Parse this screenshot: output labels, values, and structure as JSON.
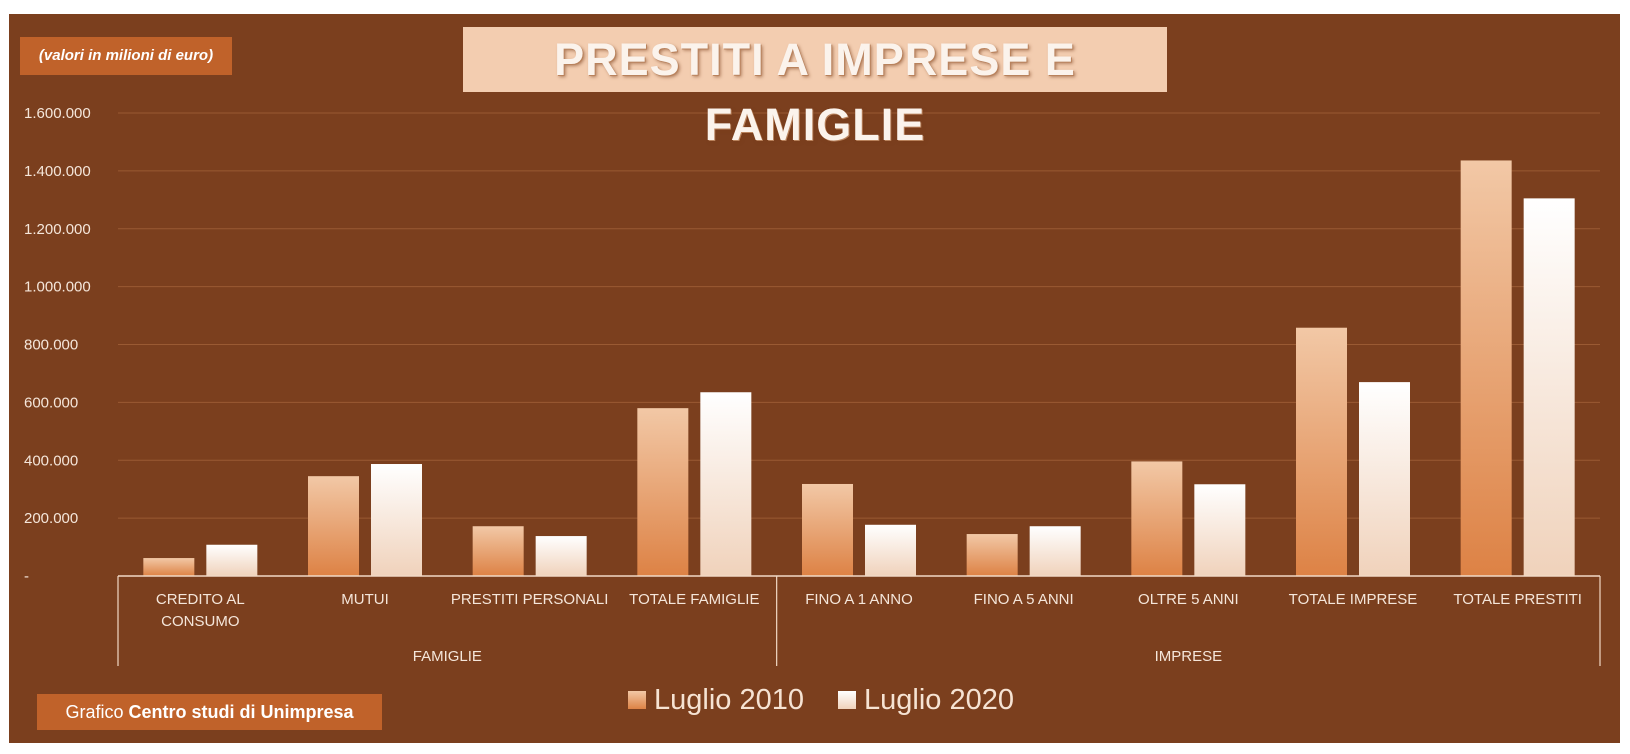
{
  "header": {
    "unit_note": "(valori in milioni di euro)",
    "title": "PRESTITI A IMPRESE E FAMIGLIE"
  },
  "footer": {
    "credit_prefix": "Grafico",
    "credit_bold": "Centro studi di Unimpresa"
  },
  "colors": {
    "background": "#7b3f1e",
    "series_2010_top": "#f2c8a6",
    "series_2010_bottom": "#dd8245",
    "series_2020_top": "#ffffff",
    "series_2020_bottom": "#f0d2bb",
    "label_box": "#c0622a"
  },
  "chart_data": {
    "type": "bar",
    "title": "PRESTITI A IMPRESE E FAMIGLIE",
    "ylabel": "",
    "xlabel": "",
    "ylim": [
      0,
      1600000
    ],
    "y_ticks": [
      "-",
      "200.000",
      "400.000",
      "600.000",
      "800.000",
      "1.000.000",
      "1.200.000",
      "1.400.000",
      "1.600.000"
    ],
    "y_tick_values": [
      0,
      200000,
      400000,
      600000,
      800000,
      1000000,
      1200000,
      1400000,
      1600000
    ],
    "grid": true,
    "legend_position": "bottom",
    "categories": [
      [
        "CREDITO AL",
        "CONSUMO"
      ],
      [
        "MUTUI"
      ],
      [
        "PRESTITI PERSONALI"
      ],
      [
        "TOTALE FAMIGLIE"
      ],
      [
        "FINO A 1 ANNO"
      ],
      [
        "FINO A 5 ANNI"
      ],
      [
        "OLTRE 5 ANNI"
      ],
      [
        "TOTALE IMPRESE"
      ],
      [
        "TOTALE PRESTITI"
      ]
    ],
    "groups": [
      {
        "label": "FAMIGLIE",
        "categories": 4
      },
      {
        "label": "IMPRESE",
        "categories": 5
      }
    ],
    "series": [
      {
        "name": "Luglio 2010",
        "values": [
          62000,
          345000,
          172000,
          580000,
          318000,
          145000,
          396000,
          858000,
          1436000
        ]
      },
      {
        "name": "Luglio 2020",
        "values": [
          108000,
          387000,
          138000,
          635000,
          177000,
          172000,
          317000,
          670000,
          1305000
        ]
      }
    ]
  }
}
